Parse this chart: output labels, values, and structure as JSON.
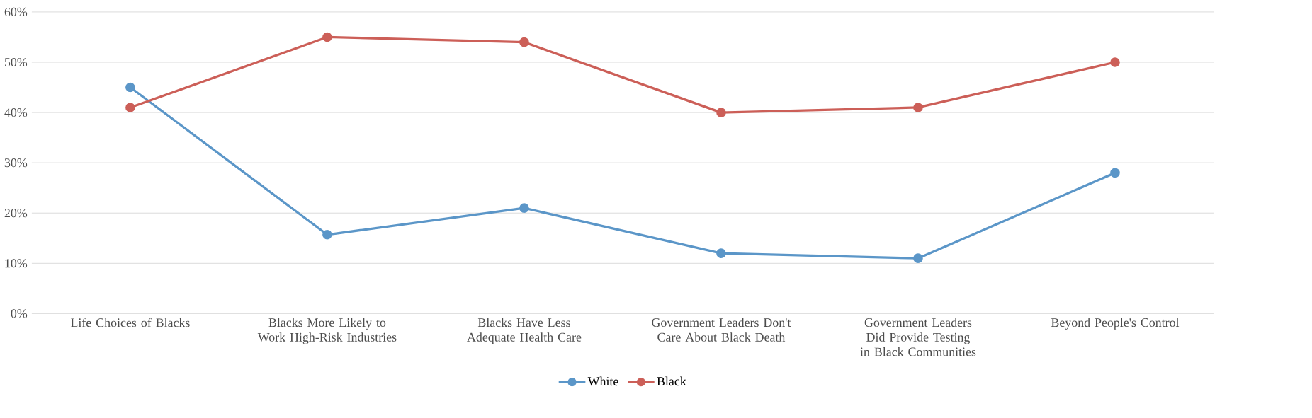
{
  "chart_data": {
    "type": "line",
    "categories": [
      "Life Choices of Blacks",
      "Blacks More Likely to Work High-Risk Industries",
      "Blacks Have Less Adequate Health Care",
      "Government Leaders Don't Care About Black Death",
      "Government Leaders Did Provide Testing in Black Communities",
      "Beyond People's Control"
    ],
    "series": [
      {
        "name": "White",
        "color": "#5b96c8",
        "values": [
          45,
          15.7,
          21,
          12,
          11,
          28
        ]
      },
      {
        "name": "Black",
        "color": "#cc5f58",
        "values": [
          41,
          55,
          54,
          40,
          41,
          50
        ]
      }
    ],
    "ylim": [
      0,
      60
    ],
    "yticks": [
      {
        "value": 0,
        "label": "0%"
      },
      {
        "value": 10,
        "label": "10%"
      },
      {
        "value": 20,
        "label": "20%"
      },
      {
        "value": 30,
        "label": "30%"
      },
      {
        "value": 40,
        "label": "40%"
      },
      {
        "value": 50,
        "label": "50%"
      },
      {
        "value": 60,
        "label": "60%"
      }
    ],
    "grid": "y",
    "legend": "bottom",
    "marker": "circle",
    "line_style": "solid"
  }
}
